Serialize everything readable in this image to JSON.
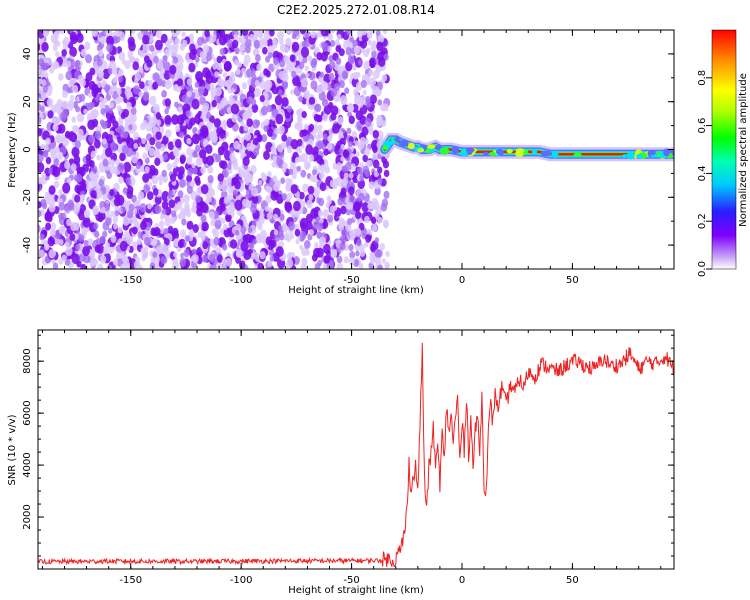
{
  "title": "C2E2.2025.272.01.08.R14",
  "chart_data": [
    {
      "type": "heatmap",
      "xlabel": "Height of straight line (km)",
      "ylabel": "Frequency (Hz)",
      "xlim": [
        -192,
        96
      ],
      "ylim": [
        -50,
        50
      ],
      "xticks": [
        -150,
        -100,
        -50,
        0,
        50
      ],
      "yticks": [
        -40,
        -20,
        0,
        20,
        40
      ],
      "noise_region_x": [
        -192,
        -35
      ],
      "signal_trace": {
        "x": [
          -35,
          -32,
          -30,
          -28,
          -25,
          -22,
          -20,
          -18,
          -15,
          -12,
          -10,
          -5,
          0,
          5,
          10,
          15,
          20,
          25,
          30,
          35,
          40,
          50,
          60,
          70,
          80,
          90,
          96
        ],
        "y": [
          0,
          4,
          4,
          3,
          2,
          1,
          1,
          0,
          0,
          1,
          0,
          0,
          -1,
          -1,
          -1,
          -1,
          -1,
          -1,
          -1,
          -1,
          -2,
          -2,
          -2,
          -2,
          -2,
          -2,
          -2
        ]
      },
      "colorbar": {
        "label": "Normalized spectral amplitude",
        "range": [
          0,
          1
        ],
        "ticks": [
          0.0,
          0.2,
          0.4,
          0.6,
          0.8
        ],
        "colormap": [
          "#ffffff",
          "#9400d3",
          "#4b0082",
          "#0000ff",
          "#00ffff",
          "#00ff00",
          "#ffff00",
          "#ff7f00",
          "#ff0000"
        ]
      }
    },
    {
      "type": "line",
      "xlabel": "Height of straight line (km)",
      "ylabel": "SNR (10 * v/v)",
      "xlim": [
        -192,
        96
      ],
      "ylim": [
        0,
        9200
      ],
      "xticks": [
        -150,
        -100,
        -50,
        0,
        50
      ],
      "yticks": [
        2000,
        4000,
        6000,
        8000
      ],
      "color": "#ee2222",
      "series": [
        {
          "x": [
            -192,
            -160,
            -120,
            -80,
            -50,
            -35,
            -30,
            -28,
            -26,
            -25,
            -24,
            -23,
            -22,
            -21,
            -20,
            -19,
            -18,
            -17,
            -16,
            -15,
            -14,
            -13,
            -12,
            -11,
            -10,
            -9,
            -8,
            -7,
            -6,
            -5,
            -4,
            -3,
            -2,
            -1,
            0,
            1,
            2,
            3,
            4,
            5,
            6,
            7,
            8,
            9,
            10,
            11,
            12,
            13,
            14,
            15,
            16,
            17,
            18,
            19,
            20,
            22,
            24,
            26,
            28,
            30,
            33,
            36,
            40,
            44,
            48,
            52,
            56,
            60,
            64,
            68,
            72,
            76,
            80,
            84,
            88,
            92,
            96
          ],
          "y": [
            280,
            300,
            290,
            310,
            320,
            330,
            400,
            700,
            1400,
            2200,
            4200,
            2900,
            3600,
            3900,
            3000,
            5600,
            8500,
            3400,
            2300,
            3900,
            4400,
            5600,
            3700,
            4800,
            3300,
            5200,
            4100,
            6300,
            5300,
            5900,
            5000,
            5700,
            6600,
            4100,
            5600,
            4600,
            6700,
            4400,
            5900,
            3900,
            5300,
            5900,
            4600,
            6600,
            3300,
            3100,
            5300,
            6300,
            5600,
            6900,
            6200,
            6500,
            7000,
            6600,
            6300,
            7100,
            6800,
            7300,
            7000,
            7600,
            7400,
            7900,
            7700,
            7600,
            7900,
            8000,
            7800,
            7700,
            8100,
            7800,
            7900,
            8300,
            7700,
            8000,
            7900,
            8200,
            7700
          ]
        }
      ]
    }
  ]
}
